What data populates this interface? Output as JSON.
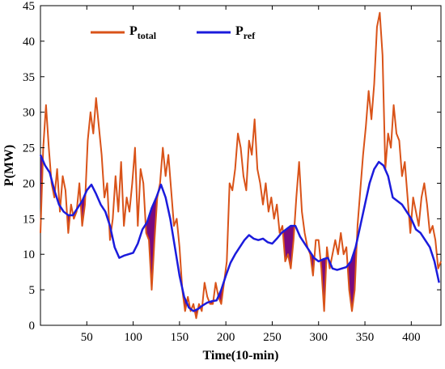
{
  "chart_data": {
    "type": "line",
    "xlabel": "Time(10-min)",
    "ylabel": "P(MW)",
    "xlim": [
      0,
      432
    ],
    "ylim": [
      0,
      45
    ],
    "xticks": [
      50,
      100,
      150,
      200,
      250,
      300,
      350,
      400
    ],
    "yticks": [
      0,
      5,
      10,
      15,
      20,
      25,
      30,
      35,
      40,
      45
    ],
    "grid": false,
    "legend": {
      "placement": "top-left",
      "entries": [
        {
          "main": "P",
          "sub": "total",
          "color": "#d95319"
        },
        {
          "main": "P",
          "sub": "ref",
          "color": "#1b1bdc"
        }
      ]
    },
    "fill_color": "#7a0a7f",
    "series": [
      {
        "name": "Ptotal",
        "color": "#d95319",
        "x": [
          0,
          3,
          6,
          9,
          12,
          15,
          18,
          21,
          24,
          27,
          30,
          33,
          36,
          39,
          42,
          45,
          48,
          51,
          54,
          57,
          60,
          63,
          66,
          69,
          72,
          75,
          78,
          81,
          84,
          87,
          90,
          93,
          96,
          99,
          102,
          105,
          108,
          111,
          114,
          117,
          120,
          123,
          126,
          129,
          132,
          135,
          138,
          141,
          144,
          147,
          150,
          153,
          156,
          159,
          162,
          165,
          168,
          171,
          174,
          177,
          180,
          183,
          186,
          189,
          192,
          195,
          198,
          201,
          204,
          207,
          210,
          213,
          216,
          219,
          222,
          225,
          228,
          231,
          234,
          237,
          240,
          243,
          246,
          249,
          252,
          255,
          258,
          261,
          264,
          267,
          270,
          273,
          276,
          279,
          282,
          285,
          288,
          291,
          294,
          297,
          300,
          303,
          306,
          309,
          312,
          315,
          318,
          321,
          324,
          327,
          330,
          333,
          336,
          339,
          342,
          345,
          348,
          351,
          354,
          357,
          360,
          363,
          366,
          369,
          372,
          375,
          378,
          381,
          384,
          387,
          390,
          393,
          396,
          399,
          402,
          405,
          408,
          411,
          414,
          417,
          420,
          423,
          426,
          429,
          432
        ],
        "values": [
          13,
          25,
          31,
          25,
          20,
          18,
          22,
          16,
          21,
          19,
          13,
          17,
          15,
          16,
          20,
          14,
          17,
          26,
          30,
          27,
          32,
          28,
          24,
          18,
          20,
          12,
          15,
          21,
          16,
          23,
          14,
          18,
          16,
          20,
          25,
          14,
          22,
          20,
          13,
          12,
          5,
          12,
          18,
          20,
          25,
          21,
          24,
          19,
          14,
          15,
          11,
          5,
          2,
          4,
          2,
          3,
          1,
          3,
          2,
          6,
          4,
          3,
          3,
          6,
          4,
          3,
          6,
          9,
          20,
          19,
          22,
          27,
          25,
          21,
          19,
          26,
          24,
          29,
          22,
          20,
          17,
          20,
          16,
          18,
          15,
          17,
          13,
          14,
          9,
          10,
          8,
          12,
          18,
          23,
          16,
          13,
          11,
          10,
          7,
          12,
          12,
          8,
          2,
          11,
          8,
          10,
          12,
          10,
          13,
          10,
          11,
          5,
          2,
          5,
          14,
          19,
          24,
          28,
          33,
          29,
          34,
          42,
          44,
          38,
          22,
          27,
          25,
          31,
          27,
          26,
          21,
          23,
          18,
          13,
          18,
          16,
          14,
          18,
          20,
          17,
          13,
          14,
          12,
          8,
          9
        ]
      },
      {
        "name": "Pref",
        "color": "#1b1bdc",
        "x": [
          0,
          5,
          10,
          15,
          20,
          25,
          30,
          35,
          40,
          45,
          50,
          55,
          60,
          65,
          70,
          75,
          80,
          85,
          90,
          95,
          100,
          105,
          110,
          115,
          120,
          125,
          130,
          135,
          140,
          145,
          150,
          155,
          160,
          165,
          170,
          175,
          180,
          185,
          190,
          195,
          200,
          205,
          210,
          215,
          220,
          225,
          230,
          235,
          240,
          245,
          250,
          255,
          260,
          265,
          270,
          275,
          280,
          285,
          290,
          295,
          300,
          305,
          310,
          315,
          320,
          325,
          330,
          335,
          340,
          345,
          350,
          355,
          360,
          365,
          370,
          375,
          380,
          385,
          390,
          395,
          400,
          405,
          410,
          415,
          420,
          425,
          430
        ],
        "values": [
          24,
          22.5,
          21.5,
          19,
          17,
          16,
          15.5,
          15.5,
          16.5,
          17.5,
          19,
          19.8,
          18.5,
          17,
          16,
          14,
          11,
          9.5,
          9.8,
          10,
          10.2,
          11.5,
          13.5,
          14.5,
          16.5,
          18,
          19.8,
          18,
          15,
          11,
          7,
          4,
          2.5,
          2,
          2.3,
          2.8,
          3.2,
          3.4,
          3.5,
          5,
          7,
          8.8,
          10,
          11,
          12,
          12.7,
          12.2,
          12,
          12.2,
          11.7,
          11.5,
          12.2,
          13,
          13.5,
          14,
          14,
          12.5,
          11.5,
          10.5,
          9.5,
          9,
          9.3,
          9.5,
          8,
          7.8,
          8,
          8.2,
          9,
          11,
          14,
          17,
          20,
          22,
          23,
          22.5,
          21,
          18,
          17.5,
          17,
          16,
          15,
          13.5,
          13,
          12,
          11,
          9,
          6
        ]
      }
    ]
  }
}
